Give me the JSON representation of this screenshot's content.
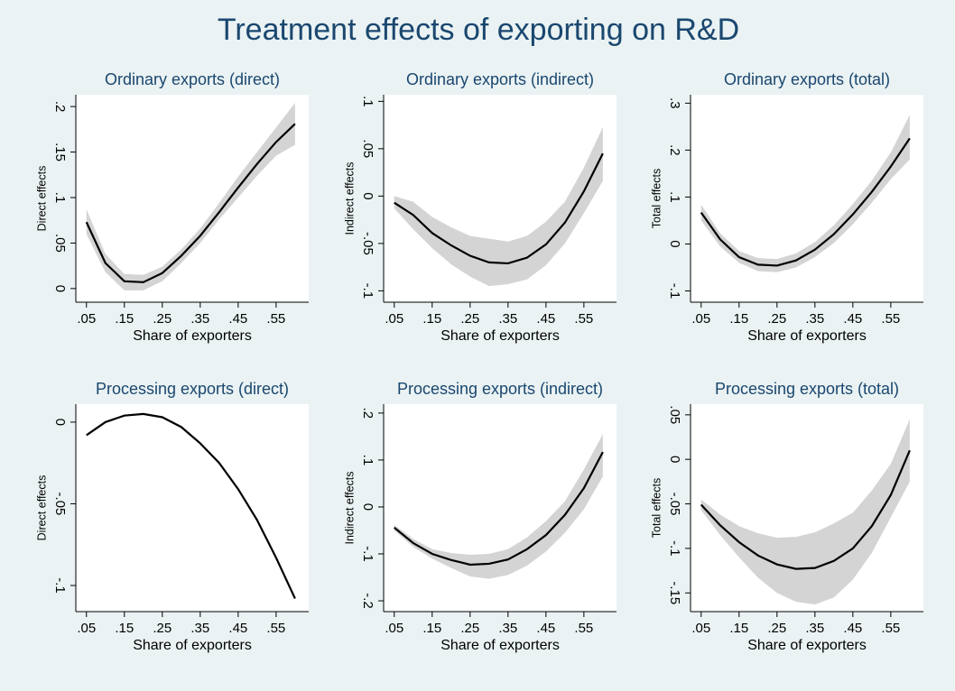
{
  "title": "Treatment effects of exporting on R&D",
  "chart_data": [
    {
      "type": "line",
      "title": "Ordinary exports (direct)",
      "x_label": "Share of exporters",
      "y_label": "Direct effects",
      "x": [
        0.05,
        0.1,
        0.15,
        0.2,
        0.25,
        0.3,
        0.35,
        0.4,
        0.45,
        0.5,
        0.55,
        0.6
      ],
      "values": [
        0.073,
        0.028,
        0.008,
        0.007,
        0.017,
        0.036,
        0.058,
        0.084,
        0.111,
        0.137,
        0.161,
        0.181
      ],
      "ci_lower": [
        0.06,
        0.018,
        -0.002,
        -0.002,
        0.008,
        0.028,
        0.05,
        0.076,
        0.1,
        0.124,
        0.146,
        0.158
      ],
      "ci_upper": [
        0.087,
        0.038,
        0.016,
        0.015,
        0.024,
        0.043,
        0.066,
        0.094,
        0.123,
        0.15,
        0.177,
        0.204
      ],
      "color": "#000000",
      "band_color": "#d4d4d4",
      "xlim": [
        0.022,
        0.636
      ],
      "xticks": [
        {
          "value": 0.05,
          "label": ".05"
        },
        {
          "value": 0.15,
          "label": ".15"
        },
        {
          "value": 0.25,
          "label": ".25"
        },
        {
          "value": 0.35,
          "label": ".35"
        },
        {
          "value": 0.45,
          "label": ".45"
        },
        {
          "value": 0.55,
          "label": ".55"
        }
      ],
      "ylim": [
        -0.015,
        0.213
      ],
      "yticks": [
        0,
        {
          "value": 0.05,
          "label": ".05"
        },
        {
          "value": 0.1,
          "label": ".1"
        },
        {
          "value": 0.15,
          "label": ".15"
        },
        {
          "value": 0.2,
          "label": ".2"
        }
      ]
    },
    {
      "type": "line",
      "title": "Ordinary exports (indirect)",
      "x_label": "Share of exporters",
      "y_label": "Indirect effects",
      "x": [
        0.05,
        0.1,
        0.15,
        0.2,
        0.25,
        0.3,
        0.35,
        0.4,
        0.45,
        0.5,
        0.55,
        0.6
      ],
      "values": [
        -0.007,
        -0.02,
        -0.039,
        -0.052,
        -0.063,
        -0.07,
        -0.071,
        -0.065,
        -0.051,
        -0.028,
        0.005,
        0.045
      ],
      "ci_lower": [
        -0.013,
        -0.035,
        -0.055,
        -0.072,
        -0.085,
        -0.095,
        -0.093,
        -0.088,
        -0.073,
        -0.05,
        -0.018,
        0.016
      ],
      "ci_upper": [
        0,
        -0.006,
        -0.022,
        -0.033,
        -0.042,
        -0.045,
        -0.048,
        -0.042,
        -0.027,
        -0.006,
        0.03,
        0.073
      ],
      "color": "#000000",
      "band_color": "#d4d4d4",
      "xlim": [
        0.022,
        0.636
      ],
      "xticks": [
        {
          "value": 0.05,
          "label": ".05"
        },
        {
          "value": 0.15,
          "label": ".15"
        },
        {
          "value": 0.25,
          "label": ".25"
        },
        {
          "value": 0.35,
          "label": ".35"
        },
        {
          "value": 0.45,
          "label": ".45"
        },
        {
          "value": 0.55,
          "label": ".55"
        }
      ],
      "ylim": [
        -0.112,
        0.107
      ],
      "yticks": [
        {
          "value": -0.1,
          "label": "-.1"
        },
        {
          "value": -0.05,
          "label": "-.05"
        },
        0,
        {
          "value": 0.05,
          "label": ".05"
        },
        {
          "value": 0.1,
          "label": ".1"
        }
      ]
    },
    {
      "type": "line",
      "title": "Ordinary exports (total)",
      "x_label": "Share of exporters",
      "y_label": "Total effects",
      "x": [
        0.05,
        0.1,
        0.15,
        0.2,
        0.25,
        0.3,
        0.35,
        0.4,
        0.45,
        0.5,
        0.55,
        0.6
      ],
      "values": [
        0.067,
        0.01,
        -0.028,
        -0.044,
        -0.046,
        -0.035,
        -0.012,
        0.021,
        0.063,
        0.111,
        0.165,
        0.225
      ],
      "ci_lower": [
        0.05,
        -0.005,
        -0.04,
        -0.058,
        -0.06,
        -0.05,
        -0.028,
        0.002,
        0.042,
        0.088,
        0.138,
        0.18
      ],
      "ci_upper": [
        0.084,
        0.023,
        -0.015,
        -0.03,
        -0.032,
        -0.02,
        0.004,
        0.04,
        0.085,
        0.135,
        0.195,
        0.275
      ],
      "color": "#000000",
      "band_color": "#d4d4d4",
      "xlim": [
        0.022,
        0.636
      ],
      "xticks": [
        {
          "value": 0.05,
          "label": ".05"
        },
        {
          "value": 0.15,
          "label": ".15"
        },
        {
          "value": 0.25,
          "label": ".25"
        },
        {
          "value": 0.35,
          "label": ".35"
        },
        {
          "value": 0.45,
          "label": ".45"
        },
        {
          "value": 0.55,
          "label": ".55"
        }
      ],
      "ylim": [
        -0.124,
        0.318
      ],
      "yticks": [
        {
          "value": -0.1,
          "label": "-.1"
        },
        0,
        {
          "value": 0.1,
          "label": ".1"
        },
        {
          "value": 0.2,
          "label": ".2"
        },
        {
          "value": 0.3,
          "label": ".3"
        }
      ]
    },
    {
      "type": "line",
      "title": "Processing exports (direct)",
      "x_label": "Share of exporters",
      "y_label": "Direct effects",
      "x": [
        0.05,
        0.1,
        0.15,
        0.2,
        0.25,
        0.3,
        0.35,
        0.4,
        0.45,
        0.5,
        0.55,
        0.6
      ],
      "values": [
        -0.008,
        0,
        0.004,
        0.005,
        0.003,
        -0.003,
        -0.013,
        -0.025,
        -0.041,
        -0.06,
        -0.083,
        -0.108
      ],
      "color": "#000000",
      "xlim": [
        0.022,
        0.636
      ],
      "xticks": [
        {
          "value": 0.05,
          "label": ".05"
        },
        {
          "value": 0.15,
          "label": ".15"
        },
        {
          "value": 0.25,
          "label": ".25"
        },
        {
          "value": 0.35,
          "label": ".35"
        },
        {
          "value": 0.45,
          "label": ".45"
        },
        {
          "value": 0.55,
          "label": ".55"
        }
      ],
      "ylim": [
        -0.116,
        0.011
      ],
      "yticks": [
        {
          "value": -0.1,
          "label": "-.1"
        },
        {
          "value": -0.05,
          "label": "-.05"
        },
        0
      ]
    },
    {
      "type": "line",
      "title": "Processing exports (indirect)",
      "x_label": "Share of exporters",
      "y_label": "Indirect effects",
      "x": [
        0.05,
        0.1,
        0.15,
        0.2,
        0.25,
        0.3,
        0.35,
        0.4,
        0.45,
        0.5,
        0.55,
        0.6
      ],
      "values": [
        -0.044,
        -0.077,
        -0.1,
        -0.113,
        -0.123,
        -0.121,
        -0.112,
        -0.09,
        -0.06,
        -0.017,
        0.04,
        0.117
      ],
      "ci_lower": [
        -0.05,
        -0.085,
        -0.11,
        -0.13,
        -0.148,
        -0.153,
        -0.145,
        -0.125,
        -0.095,
        -0.055,
        -0.005,
        0.065
      ],
      "ci_upper": [
        -0.038,
        -0.068,
        -0.09,
        -0.098,
        -0.102,
        -0.1,
        -0.09,
        -0.065,
        -0.03,
        0.012,
        0.08,
        0.155
      ],
      "color": "#000000",
      "band_color": "#d4d4d4",
      "xlim": [
        0.022,
        0.636
      ],
      "xticks": [
        {
          "value": 0.05,
          "label": ".05"
        },
        {
          "value": 0.15,
          "label": ".15"
        },
        {
          "value": 0.25,
          "label": ".25"
        },
        {
          "value": 0.35,
          "label": ".35"
        },
        {
          "value": 0.45,
          "label": ".45"
        },
        {
          "value": 0.55,
          "label": ".55"
        }
      ],
      "ylim": [
        -0.223,
        0.219
      ],
      "yticks": [
        {
          "value": -0.2,
          "label": "-.2"
        },
        {
          "value": -0.1,
          "label": "-.1"
        },
        0,
        {
          "value": 0.1,
          "label": ".1"
        },
        {
          "value": 0.2,
          "label": ".2"
        }
      ]
    },
    {
      "type": "line",
      "title": "Processing exports (total)",
      "x_label": "Share of exporters",
      "y_label": "Total effects",
      "x": [
        0.05,
        0.1,
        0.15,
        0.2,
        0.25,
        0.3,
        0.35,
        0.4,
        0.45,
        0.5,
        0.55,
        0.6
      ],
      "values": [
        -0.051,
        -0.074,
        -0.093,
        -0.108,
        -0.118,
        -0.123,
        -0.122,
        -0.114,
        -0.1,
        -0.075,
        -0.04,
        0.01
      ],
      "ci_lower": [
        -0.057,
        -0.085,
        -0.11,
        -0.133,
        -0.15,
        -0.16,
        -0.163,
        -0.155,
        -0.135,
        -0.105,
        -0.065,
        -0.025
      ],
      "ci_upper": [
        -0.045,
        -0.062,
        -0.075,
        -0.083,
        -0.088,
        -0.087,
        -0.082,
        -0.072,
        -0.06,
        -0.035,
        -0.005,
        0.045
      ],
      "color": "#000000",
      "band_color": "#d4d4d4",
      "xlim": [
        0.022,
        0.636
      ],
      "xticks": [
        {
          "value": 0.05,
          "label": ".05"
        },
        {
          "value": 0.15,
          "label": ".15"
        },
        {
          "value": 0.25,
          "label": ".25"
        },
        {
          "value": 0.35,
          "label": ".35"
        },
        {
          "value": 0.45,
          "label": ".45"
        },
        {
          "value": 0.55,
          "label": ".55"
        }
      ],
      "ylim": [
        -0.171,
        0.062
      ],
      "yticks": [
        {
          "value": -0.15,
          "label": "-.15"
        },
        {
          "value": -0.1,
          "label": "-.1"
        },
        {
          "value": -0.05,
          "label": "-.05"
        },
        0,
        {
          "value": 0.05,
          "label": ".05"
        }
      ]
    }
  ]
}
